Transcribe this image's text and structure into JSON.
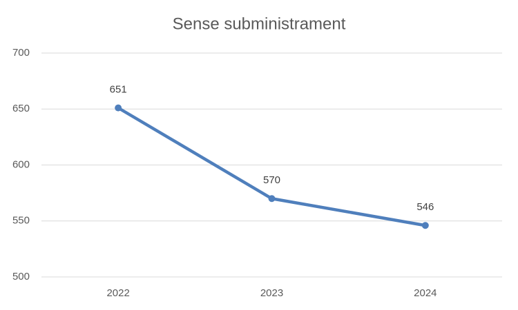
{
  "chart_data": {
    "type": "line",
    "title": "Sense subministrament",
    "categories": [
      "2022",
      "2023",
      "2024"
    ],
    "values": [
      651,
      570,
      546
    ],
    "color": "#4f7fbc",
    "ylim": [
      500,
      700
    ],
    "yticks": [
      500,
      550,
      600,
      650,
      700
    ],
    "grid": true,
    "data_labels": true
  }
}
